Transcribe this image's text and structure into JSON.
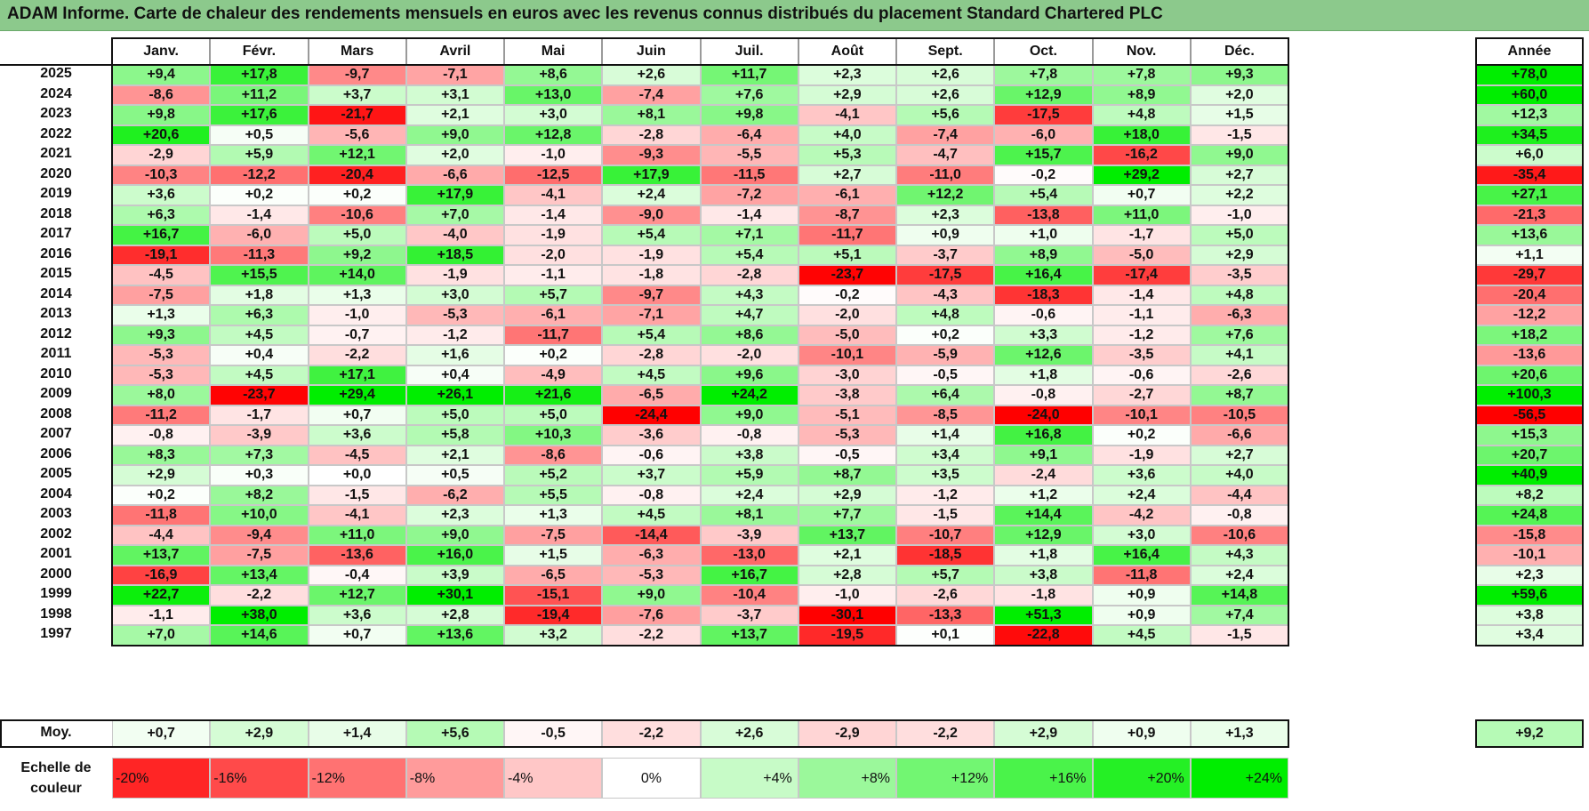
{
  "title": "ADAM Informe. Carte de chaleur des rendements mensuels en euros avec les revenus connus distribués du placement Standard Chartered PLC",
  "colors": {
    "title_bg": "#8cc98c",
    "neg_max": "#ff0000",
    "zero": "#ffffff",
    "pos_max": "#00ee00"
  },
  "chart_data": {
    "type": "heatmap",
    "title": "ADAM Informe. Carte de chaleur des rendements mensuels en euros avec les revenus connus distribués du placement Standard Chartered PLC",
    "months": [
      "Janv.",
      "Févr.",
      "Mars",
      "Avril",
      "Mai",
      "Juin",
      "Juil.",
      "Août",
      "Sept.",
      "Oct.",
      "Nov.",
      "Déc."
    ],
    "year_header": "Année",
    "rows": [
      {
        "year": "2025",
        "values": [
          "+9,4",
          "+17,8",
          "-9,7",
          "-7,1",
          "+8,6",
          "+2,6",
          "+11,7",
          "+2,3",
          "+2,6",
          "+7,8",
          "+7,8",
          "+9,3"
        ],
        "annual": "+78,0"
      },
      {
        "year": "2024",
        "values": [
          "-8,6",
          "+11,2",
          "+3,7",
          "+3,1",
          "+13,0",
          "-7,4",
          "+7,6",
          "+2,9",
          "+2,6",
          "+12,9",
          "+8,9",
          "+2,0"
        ],
        "annual": "+60,0"
      },
      {
        "year": "2023",
        "values": [
          "+9,8",
          "+17,6",
          "-21,7",
          "+2,1",
          "+3,0",
          "+8,1",
          "+9,8",
          "-4,1",
          "+5,6",
          "-17,5",
          "+4,8",
          "+1,5"
        ],
        "annual": "+12,3"
      },
      {
        "year": "2022",
        "values": [
          "+20,6",
          "+0,5",
          "-5,6",
          "+9,0",
          "+12,8",
          "-2,8",
          "-6,4",
          "+4,0",
          "-7,4",
          "-6,0",
          "+18,0",
          "-1,5"
        ],
        "annual": "+34,5"
      },
      {
        "year": "2021",
        "values": [
          "-2,9",
          "+5,9",
          "+12,1",
          "+2,0",
          "-1,0",
          "-9,3",
          "-5,5",
          "+5,3",
          "-4,7",
          "+15,7",
          "-16,2",
          "+9,0"
        ],
        "annual": "+6,0"
      },
      {
        "year": "2020",
        "values": [
          "-10,3",
          "-12,2",
          "-20,4",
          "-6,6",
          "-12,5",
          "+17,9",
          "-11,5",
          "+2,7",
          "-11,0",
          "-0,2",
          "+29,2",
          "+2,7"
        ],
        "annual": "-35,4"
      },
      {
        "year": "2019",
        "values": [
          "+3,6",
          "+0,2",
          "+0,2",
          "+17,9",
          "-4,1",
          "+2,4",
          "-7,2",
          "-6,1",
          "+12,2",
          "+5,4",
          "+0,7",
          "+2,2"
        ],
        "annual": "+27,1"
      },
      {
        "year": "2018",
        "values": [
          "+6,3",
          "-1,4",
          "-10,6",
          "+7,0",
          "-1,4",
          "-9,0",
          "-1,4",
          "-8,7",
          "+2,3",
          "-13,8",
          "+11,0",
          "-1,0"
        ],
        "annual": "-21,3"
      },
      {
        "year": "2017",
        "values": [
          "+16,7",
          "-6,0",
          "+5,0",
          "-4,0",
          "-1,9",
          "+5,4",
          "+7,1",
          "-11,7",
          "+0,9",
          "+1,0",
          "-1,7",
          "+5,0"
        ],
        "annual": "+13,6"
      },
      {
        "year": "2016",
        "values": [
          "-19,1",
          "-11,3",
          "+9,2",
          "+18,5",
          "-2,0",
          "-1,9",
          "+5,4",
          "+5,1",
          "-3,7",
          "+8,9",
          "-5,0",
          "+2,9"
        ],
        "annual": "+1,1"
      },
      {
        "year": "2015",
        "values": [
          "-4,5",
          "+15,5",
          "+14,0",
          "-1,9",
          "-1,1",
          "-1,8",
          "-2,8",
          "-23,7",
          "-17,5",
          "+16,4",
          "-17,4",
          "-3,5"
        ],
        "annual": "-29,7"
      },
      {
        "year": "2014",
        "values": [
          "-7,5",
          "+1,8",
          "+1,3",
          "+3,0",
          "+5,7",
          "-9,7",
          "+4,3",
          "-0,2",
          "-4,3",
          "-18,3",
          "-1,4",
          "+4,8"
        ],
        "annual": "-20,4"
      },
      {
        "year": "2013",
        "values": [
          "+1,3",
          "+6,3",
          "-1,0",
          "-5,3",
          "-6,1",
          "-7,1",
          "+4,7",
          "-2,0",
          "+4,8",
          "-0,6",
          "-1,1",
          "-6,3"
        ],
        "annual": "-12,2"
      },
      {
        "year": "2012",
        "values": [
          "+9,3",
          "+4,5",
          "-0,7",
          "-1,2",
          "-11,7",
          "+5,4",
          "+8,6",
          "-5,0",
          "+0,2",
          "+3,3",
          "-1,2",
          "+7,6"
        ],
        "annual": "+18,2"
      },
      {
        "year": "2011",
        "values": [
          "-5,3",
          "+0,4",
          "-2,2",
          "+1,6",
          "+0,2",
          "-2,8",
          "-2,0",
          "-10,1",
          "-5,9",
          "+12,6",
          "-3,5",
          "+4,1"
        ],
        "annual": "-13,6"
      },
      {
        "year": "2010",
        "values": [
          "-5,3",
          "+4,5",
          "+17,1",
          "+0,4",
          "-4,9",
          "+4,5",
          "+9,6",
          "-3,0",
          "-0,5",
          "+1,8",
          "-0,6",
          "-2,6"
        ],
        "annual": "+20,6"
      },
      {
        "year": "2009",
        "values": [
          "+8,0",
          "-23,7",
          "+29,4",
          "+26,1",
          "+21,6",
          "-6,5",
          "+24,2",
          "-3,8",
          "+6,4",
          "-0,8",
          "-2,7",
          "+8,7"
        ],
        "annual": "+100,3"
      },
      {
        "year": "2008",
        "values": [
          "-11,2",
          "-1,7",
          "+0,7",
          "+5,0",
          "+5,0",
          "-24,4",
          "+9,0",
          "-5,1",
          "-8,5",
          "-24,0",
          "-10,1",
          "-10,5"
        ],
        "annual": "-56,5"
      },
      {
        "year": "2007",
        "values": [
          "-0,8",
          "-3,9",
          "+3,6",
          "+5,8",
          "+10,3",
          "-3,6",
          "-0,8",
          "-5,3",
          "+1,4",
          "+16,8",
          "+0,2",
          "-6,6"
        ],
        "annual": "+15,3"
      },
      {
        "year": "2006",
        "values": [
          "+8,3",
          "+7,3",
          "-4,5",
          "+2,1",
          "-8,6",
          "-0,6",
          "+3,8",
          "-0,5",
          "+3,4",
          "+9,1",
          "-1,9",
          "+2,7"
        ],
        "annual": "+20,7"
      },
      {
        "year": "2005",
        "values": [
          "+2,9",
          "+0,3",
          "+0,0",
          "+0,5",
          "+5,2",
          "+3,7",
          "+5,9",
          "+8,7",
          "+3,5",
          "-2,4",
          "+3,6",
          "+4,0"
        ],
        "annual": "+40,9"
      },
      {
        "year": "2004",
        "values": [
          "+0,2",
          "+8,2",
          "-1,5",
          "-6,2",
          "+5,5",
          "-0,8",
          "+2,4",
          "+2,9",
          "-1,2",
          "+1,2",
          "+2,4",
          "-4,4"
        ],
        "annual": "+8,2"
      },
      {
        "year": "2003",
        "values": [
          "-11,8",
          "+10,0",
          "-4,1",
          "+2,3",
          "+1,3",
          "+4,5",
          "+8,1",
          "+7,7",
          "-1,5",
          "+14,4",
          "-4,2",
          "-0,8"
        ],
        "annual": "+24,8"
      },
      {
        "year": "2002",
        "values": [
          "-4,4",
          "-9,4",
          "+11,0",
          "+9,0",
          "-7,5",
          "-14,4",
          "-3,9",
          "+13,7",
          "-10,7",
          "+12,9",
          "+3,0",
          "-10,6"
        ],
        "annual": "-15,8"
      },
      {
        "year": "2001",
        "values": [
          "+13,7",
          "-7,5",
          "-13,6",
          "+16,0",
          "+1,5",
          "-6,3",
          "-13,0",
          "+2,1",
          "-18,5",
          "+1,8",
          "+16,4",
          "+4,3"
        ],
        "annual": "-10,1"
      },
      {
        "year": "2000",
        "values": [
          "-16,9",
          "+13,4",
          "-0,4",
          "+3,9",
          "-6,5",
          "-5,3",
          "+16,7",
          "+2,8",
          "+5,7",
          "+3,8",
          "-11,8",
          "+2,4"
        ],
        "annual": "+2,3"
      },
      {
        "year": "1999",
        "values": [
          "+22,7",
          "-2,2",
          "+12,7",
          "+30,1",
          "-15,1",
          "+9,0",
          "-10,4",
          "-1,0",
          "-2,6",
          "-1,8",
          "+0,9",
          "+14,8"
        ],
        "annual": "+59,6"
      },
      {
        "year": "1998",
        "values": [
          "-1,1",
          "+38,0",
          "+3,6",
          "+2,8",
          "-19,4",
          "-7,6",
          "-3,7",
          "-30,1",
          "-13,3",
          "+51,3",
          "+0,9",
          "+7,4"
        ],
        "annual": "+3,8"
      },
      {
        "year": "1997",
        "values": [
          "+7,0",
          "+14,6",
          "+0,7",
          "+13,6",
          "+3,2",
          "-2,2",
          "+13,7",
          "-19,5",
          "+0,1",
          "-22,8",
          "+4,5",
          "-1,5"
        ],
        "annual": "+3,4"
      }
    ],
    "average": {
      "label": "Moy.",
      "values": [
        "+0,7",
        "+2,9",
        "+1,4",
        "+5,6",
        "-0,5",
        "-2,2",
        "+2,6",
        "-2,9",
        "-2,2",
        "+2,9",
        "+0,9",
        "+1,3"
      ],
      "annual": "+9,2"
    },
    "legend": {
      "label": "Echelle de couleur",
      "items": [
        {
          "label": "-20%",
          "value": -20
        },
        {
          "label": "-16%",
          "value": -16
        },
        {
          "label": "-12%",
          "value": -12
        },
        {
          "label": "-8%",
          "value": -8
        },
        {
          "label": "-4%",
          "value": -4
        },
        {
          "label": "0%",
          "value": 0
        },
        {
          "label": "+4%",
          "value": 4
        },
        {
          "label": "+8%",
          "value": 8
        },
        {
          "label": "+12%",
          "value": 12
        },
        {
          "label": "+16%",
          "value": 16
        },
        {
          "label": "+20%",
          "value": 20
        },
        {
          "label": "+24%",
          "value": 24
        }
      ]
    }
  }
}
